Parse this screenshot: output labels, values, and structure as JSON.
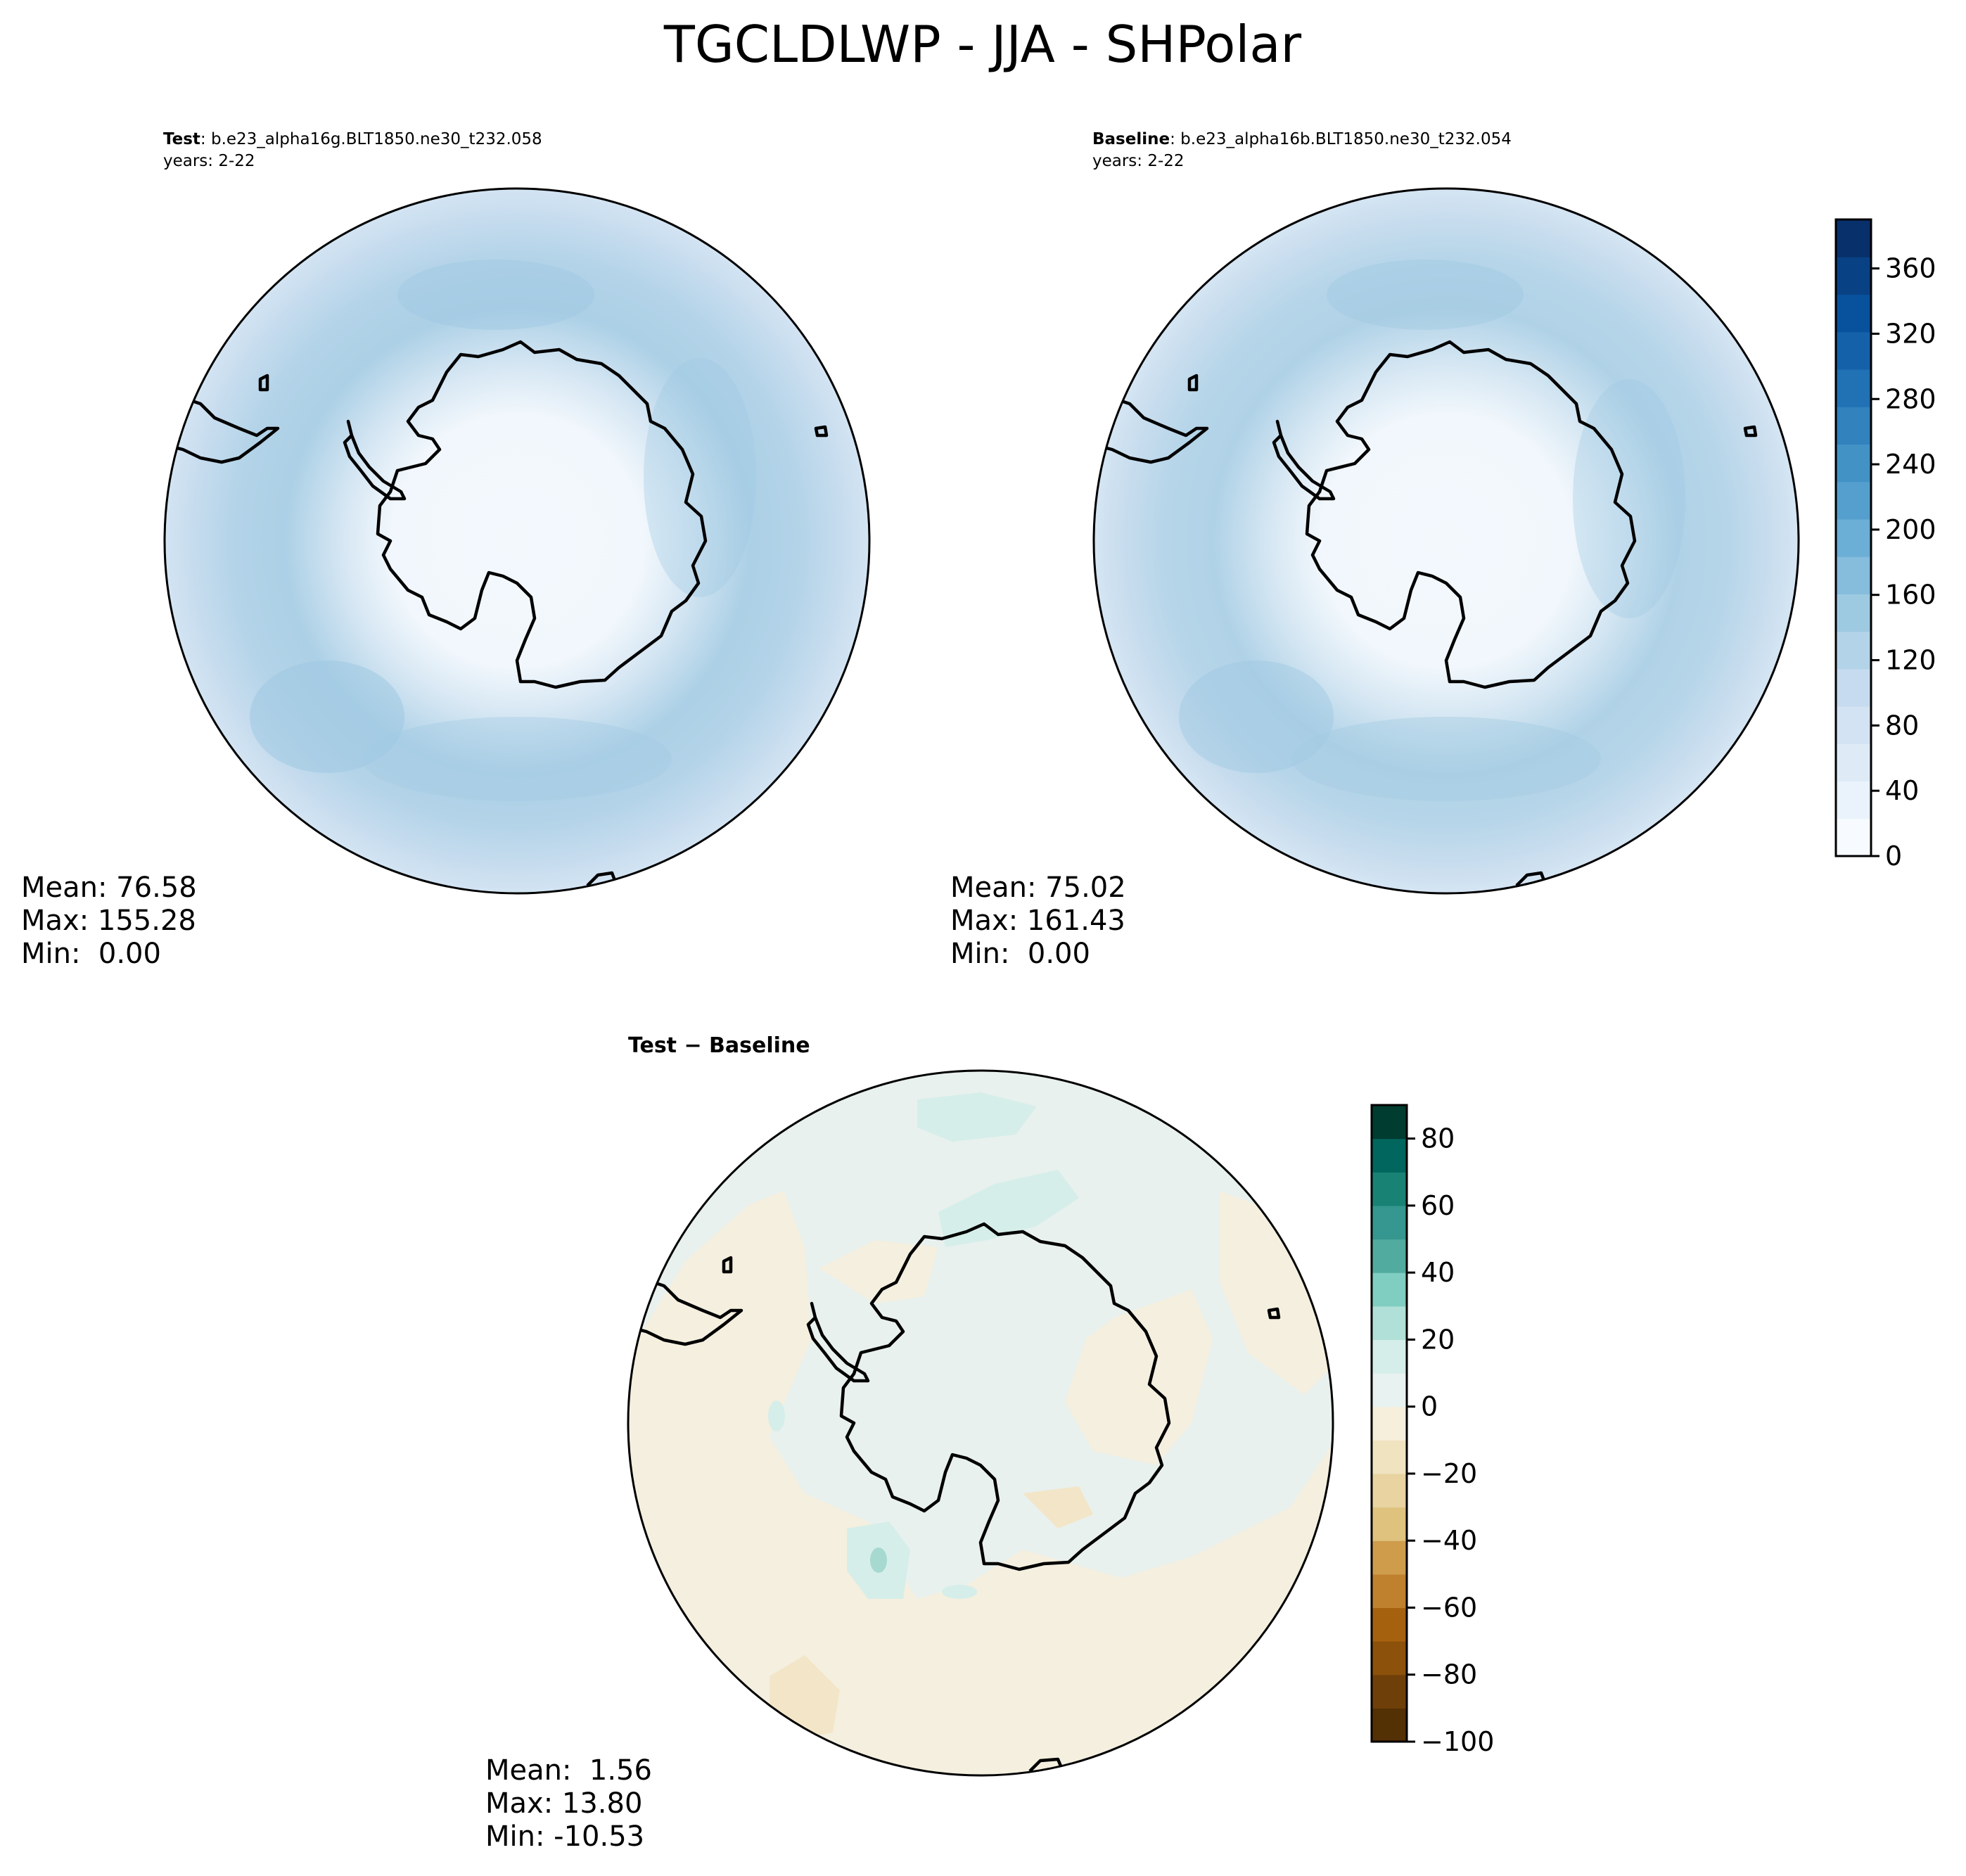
{
  "title": "TGCLDLWP - JJA - SHPolar",
  "panels": {
    "test": {
      "label_bold": "Test",
      "case": ": b.e23_alpha16g.BLT1850.ne30_t232.058",
      "years": "years: 2-22",
      "stats": {
        "mean": "Mean: 76.58",
        "max": "Max: 155.28",
        "min": "Min:  0.00"
      }
    },
    "baseline": {
      "label_bold": "Baseline",
      "case": ": b.e23_alpha16b.BLT1850.ne30_t232.054",
      "years": "years: 2-22",
      "stats": {
        "mean": "Mean: 75.02",
        "max": "Max: 161.43",
        "min": "Min:  0.00"
      }
    },
    "diff": {
      "label": "Test − Baseline",
      "stats": {
        "mean": "Mean:  1.56",
        "max": "Max: 13.80",
        "min": "Min: -10.53"
      }
    }
  },
  "chart_data": [
    {
      "type": "heatmap",
      "name": "test",
      "projection": "south-polar-stereographic",
      "colormap": "Blues",
      "levels_range": [
        0,
        400
      ],
      "mean": 76.58,
      "max": 155.28,
      "min": 0.0
    },
    {
      "type": "heatmap",
      "name": "baseline",
      "projection": "south-polar-stereographic",
      "colormap": "Blues",
      "levels_range": [
        0,
        400
      ],
      "mean": 75.02,
      "max": 161.43,
      "min": 0.0
    },
    {
      "type": "heatmap",
      "name": "difference",
      "projection": "south-polar-stereographic",
      "colormap": "BrBG",
      "levels_range": [
        -100,
        90
      ],
      "mean": 1.56,
      "max": 13.8,
      "min": -10.53
    }
  ],
  "colorbars": {
    "main": {
      "ticks": [
        "0",
        "40",
        "80",
        "120",
        "160",
        "200",
        "240",
        "280",
        "320",
        "360"
      ],
      "tick_values": [
        0,
        40,
        80,
        120,
        160,
        200,
        240,
        280,
        320,
        360
      ],
      "range": [
        0,
        390
      ],
      "colors": [
        "#f7fbff",
        "#eaf3fb",
        "#deebf7",
        "#d3e3f3",
        "#c6dbef",
        "#b3d3e8",
        "#9ecae1",
        "#86bcdc",
        "#6baed6",
        "#549fcd",
        "#4292c6",
        "#3182bd",
        "#2171b5",
        "#1561a9",
        "#08519c",
        "#084285",
        "#08306b"
      ]
    },
    "diff": {
      "ticks": [
        "80",
        "60",
        "40",
        "20",
        "0",
        "−20",
        "−40",
        "−60",
        "−80",
        "−100"
      ],
      "tick_values": [
        80,
        60,
        40,
        20,
        0,
        -20,
        -40,
        -60,
        -80,
        -100
      ],
      "range": [
        -100,
        90
      ],
      "colors": [
        "#543005",
        "#6f3f0a",
        "#8c510a",
        "#a6610f",
        "#bf812d",
        "#cf9c4c",
        "#dfc27d",
        "#e8d3a1",
        "#f0e3c0",
        "#f5efdc",
        "#e8f2f0",
        "#d6eee9",
        "#b0e0d7",
        "#80cdc1",
        "#52ab9f",
        "#35978f",
        "#188275",
        "#01665e",
        "#003c30"
      ]
    }
  },
  "colors": {
    "ocean_test": "#aed0e6",
    "ocean_diff": "#e8f1ee",
    "land": "#f3f8fd",
    "coast": "#000000"
  }
}
